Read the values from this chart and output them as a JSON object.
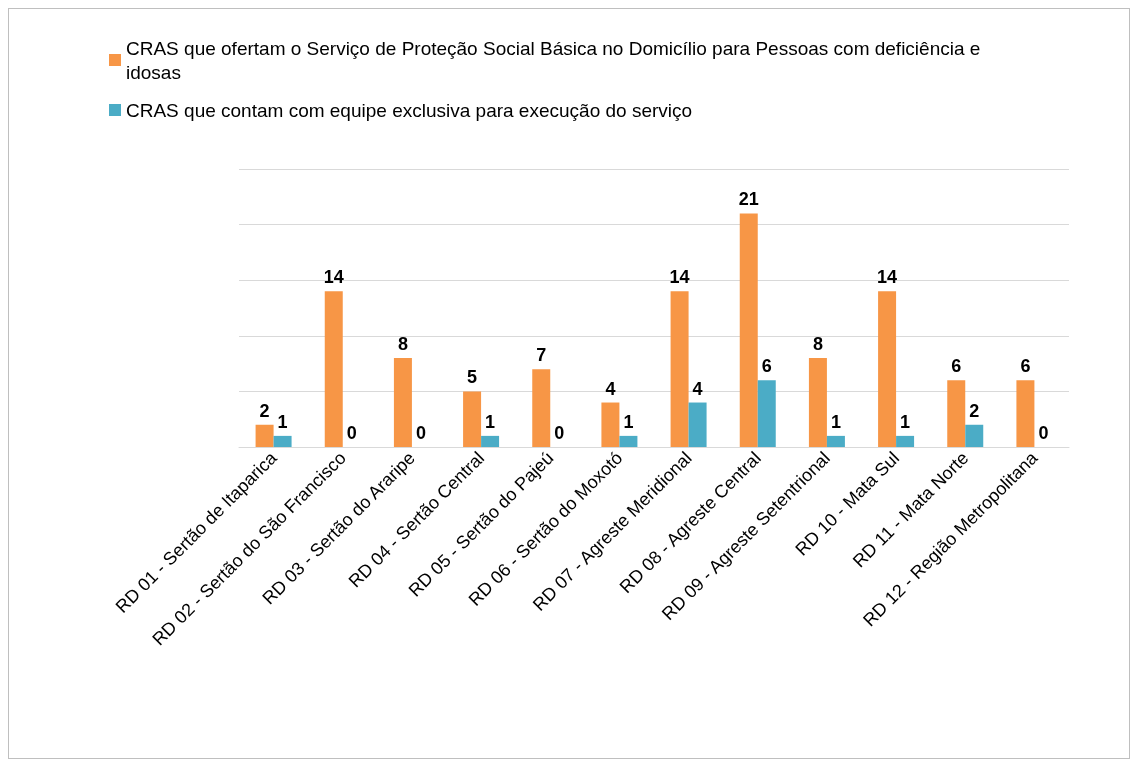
{
  "chart_data": {
    "type": "bar",
    "categories": [
      "RD 01 - Sertão de Itaparica",
      "RD 02 - Sertão do São Francisco",
      "RD 03 - Sertão do Araripe",
      "RD 04 - Sertão Central",
      "RD 05 - Sertão do Pajeú",
      "RD 06 - Sertão do Moxotó",
      "RD 07 - Agreste Meridional",
      "RD 08 - Agreste Central",
      "RD 09 - Agreste Setentrional",
      "RD 10 - Mata Sul",
      "RD 11 - Mata Norte",
      "RD 12 - Região Metropolitana"
    ],
    "series": [
      {
        "name": "CRAS que ofertam o Serviço de Proteção Social Básica no Domicílio para Pessoas com deficiência e idosas",
        "color": "#f79646",
        "values": [
          2,
          14,
          8,
          5,
          7,
          4,
          14,
          21,
          8,
          14,
          6,
          6
        ]
      },
      {
        "name": "CRAS que contam com equipe exclusiva para execução do serviço",
        "color": "#4bacc6",
        "values": [
          1,
          0,
          0,
          1,
          0,
          1,
          4,
          6,
          1,
          1,
          2,
          0
        ]
      }
    ],
    "ylim": [
      0,
      25
    ],
    "yticks": [
      {
        "value": 0,
        "label": null
      },
      {
        "value": 5,
        "label": null
      },
      {
        "value": 10,
        "label": null
      },
      {
        "value": 15,
        "label": null
      },
      {
        "value": 20,
        "label": null
      },
      {
        "value": 25,
        "label": null
      }
    ],
    "grid": "y",
    "legend": "top",
    "data_labels": true,
    "tick_labels": "x"
  }
}
